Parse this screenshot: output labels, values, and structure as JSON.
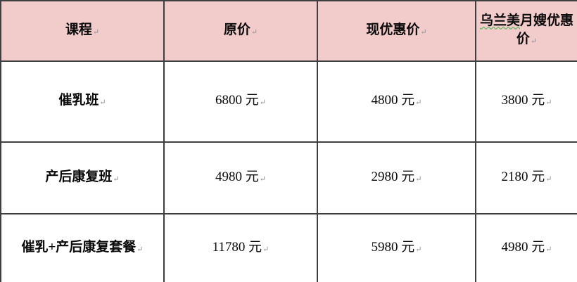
{
  "paragraph_mark": "↵",
  "colors": {
    "header_bg": "#f2cbcb",
    "border": "#3f3f3f",
    "squiggle": "#3faf4c",
    "mark": "#8f8f8f"
  },
  "table": {
    "header": {
      "course": "课程",
      "original_price": "原价",
      "current_price": "现优惠价",
      "wulanmei_squiggle": "乌兰美",
      "wulanmei_rest": "月嫂优惠价"
    },
    "rows": [
      {
        "course": "催乳班",
        "original": "6800 元",
        "current": "4800 元",
        "wulanmei": "3800 元"
      },
      {
        "course": "产后康复班",
        "original": "4980 元",
        "current": "2980 元",
        "wulanmei": "2180 元"
      },
      {
        "course": "催乳+产后康复套餐",
        "original": "11780 元",
        "current": "5980 元",
        "wulanmei": "4980 元"
      }
    ]
  }
}
